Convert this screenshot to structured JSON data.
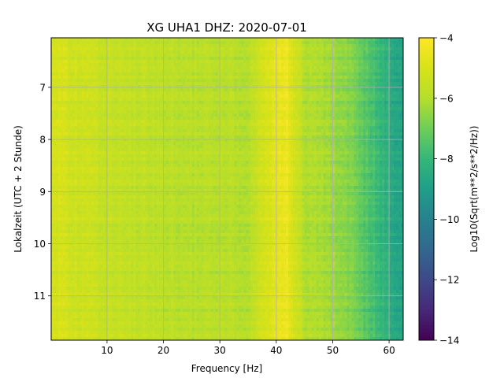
{
  "chart_data": {
    "type": "heatmap",
    "title": "XG UHA1  DHZ: 2020-07-01",
    "xlabel": "Frequency [Hz]",
    "ylabel": "Lokalzeit (UTC + 2 Stunde)",
    "xlim": [
      0.1,
      62.5
    ],
    "ylim": [
      11.85,
      6.05
    ],
    "y_axis_inverted": true,
    "xticks": [
      10,
      20,
      30,
      40,
      50,
      60
    ],
    "xtick_labels": [
      "10",
      "20",
      "30",
      "40",
      "50",
      "60"
    ],
    "yticks": [
      7,
      8,
      9,
      10,
      11
    ],
    "ytick_labels": [
      "7",
      "8",
      "9",
      "10",
      "11"
    ],
    "grid": true,
    "colormap": "viridis",
    "colorbar": {
      "label": "Log10(Sqrt(m**2/s**2/Hz))",
      "range": [
        -14,
        -4
      ],
      "ticks": [
        -4,
        -6,
        -8,
        -10,
        -12,
        -14
      ],
      "tick_labels": [
        "−4",
        "−6",
        "−8",
        "−10",
        "−12",
        "−14"
      ]
    },
    "value_profile": {
      "description_units": "Log10(Sqrt(m**2/s**2/Hz))",
      "freq": [
        0,
        5,
        10,
        15,
        20,
        25,
        30,
        35,
        40,
        42,
        45,
        50,
        53,
        55,
        58,
        60,
        62.5
      ],
      "level": [
        -5.0,
        -5.3,
        -5.6,
        -5.7,
        -5.8,
        -5.9,
        -5.9,
        -6.0,
        -4.6,
        -4.5,
        -6.0,
        -6.3,
        -6.7,
        -7.2,
        -7.9,
        -8.4,
        -8.8
      ]
    }
  }
}
